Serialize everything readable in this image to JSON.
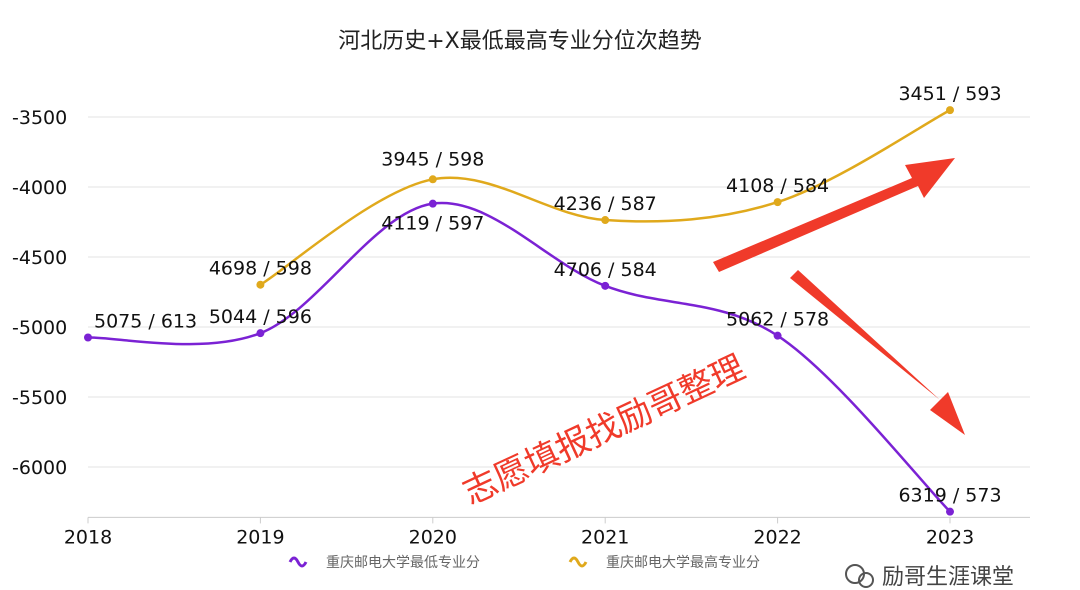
{
  "chart_data": {
    "type": "line",
    "title": "河北历史+X最低最高专业分位次趋势",
    "x": [
      "2018",
      "2019",
      "2020",
      "2021",
      "2022",
      "2023"
    ],
    "ylim": [
      -6360,
      -3100
    ],
    "yticks": [
      -3500,
      -4000,
      -4500,
      -5000,
      -5500,
      -6000
    ],
    "grid": true,
    "smooth": true,
    "legend_position": "bottom",
    "series": [
      {
        "name": "重庆邮电大学最低专业分",
        "color": "#7b22d4",
        "values": [
          -5075,
          -5044,
          -4119,
          -4706,
          -5062,
          -6319
        ],
        "labels": [
          "5075 / 613",
          "5044 / 596",
          "4119 / 597",
          "4706 / 584",
          "5062 / 578",
          "6319 / 573"
        ]
      },
      {
        "name": "重庆邮电大学最高专业分",
        "color": "#e0a91c",
        "values": [
          null,
          -4698,
          -3945,
          -4236,
          -4108,
          -3451
        ],
        "labels": [
          null,
          "4698 / 598",
          "3945 / 598",
          "4236 / 587",
          "4108 / 584",
          "3451 / 593"
        ]
      }
    ]
  },
  "watermark": {
    "text": "志愿填报找励哥整理",
    "color": "#f03a2a"
  },
  "wechat": {
    "text": "励哥生涯课堂"
  },
  "arrows_color": "#f03a2a"
}
